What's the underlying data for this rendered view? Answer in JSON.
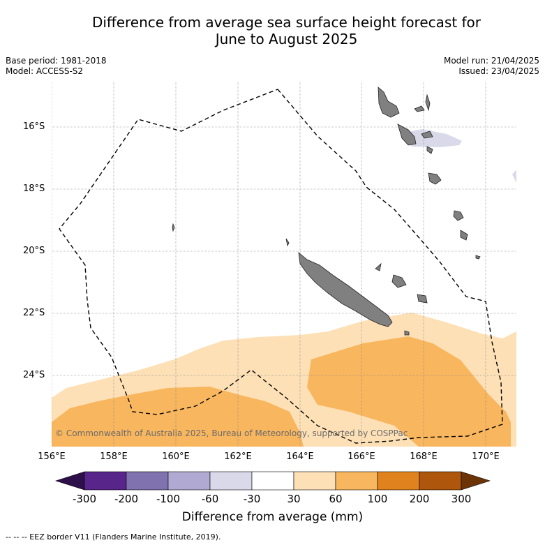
{
  "title": "Difference from average sea surface height forecast for June to August 2025",
  "title_lines": [
    "Difference from average sea surface height forecast for",
    "June to August 2025"
  ],
  "base_period": "Base period: 1981-2018",
  "model": "Model: ACCESS-S2",
  "model_run": "Model run: 21/04/2025",
  "issued": "Issued: 23/04/2025",
  "copyright": "© Commonwealth of Australia 2025, Bureau of Meteorology, supported by COSPPac",
  "lat_labels": [
    "16°S",
    "18°S",
    "20°S",
    "22°S",
    "24°S"
  ],
  "lon_labels": [
    "156°E",
    "158°E",
    "160°E",
    "162°E",
    "164°E",
    "166°E",
    "168°E",
    "170°E"
  ],
  "colorbar": {
    "title": "Difference from average (mm)",
    "tick_labels": [
      "-300",
      "-200",
      "-100",
      "-60",
      "-30",
      "30",
      "60",
      "100",
      "200",
      "300"
    ],
    "colors": [
      "#2d0f4a",
      "#58268a",
      "#7f72ae",
      "#b0a9d1",
      "#d9d9ea",
      "#ffffff",
      "#fde0b6",
      "#f8b65e",
      "#e0821e",
      "#ad560c",
      "#6b3306"
    ]
  },
  "footnote": "-- -- -- EEZ border V11 (Flanders Marine Institute, 2019).",
  "colors": {
    "land": "#808080",
    "anomaly_30_60": "#fde0b6",
    "anomaly_60_100": "#f8b65e",
    "anomaly_neg_30_60": "#d9d9ea"
  }
}
